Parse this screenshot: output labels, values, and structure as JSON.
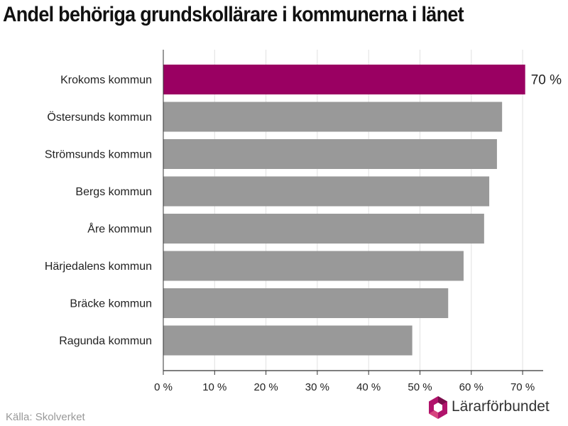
{
  "title": "Andel behöriga grundskollärare i kommunerna i länet",
  "source": "Källa: Skolverket",
  "logo_text": "Lärarförbundet",
  "colors": {
    "highlight": "#9a0062",
    "bar": "#999999",
    "grid": "#e0e0e0",
    "axis": "#333333",
    "logo_magenta": "#b0136b",
    "logo_dark": "#7a0d4b"
  },
  "chart_data": {
    "type": "bar",
    "orientation": "horizontal",
    "categories": [
      "Krokoms kommun",
      "Östersunds kommun",
      "Strömsunds kommun",
      "Bergs kommun",
      "Åre kommun",
      "Härjedalens kommun",
      "Bräcke kommun",
      "Ragunda kommun"
    ],
    "values": [
      70.5,
      66,
      65,
      63.5,
      62.5,
      58.5,
      55.5,
      48.5
    ],
    "highlight_index": 0,
    "data_labels": [
      "70 %",
      "",
      "",
      "",
      "",
      "",
      "",
      ""
    ],
    "xlim": [
      0,
      74
    ],
    "x_ticks": [
      0,
      10,
      20,
      30,
      40,
      50,
      60,
      70
    ],
    "x_tick_labels": [
      "0 %",
      "10 %",
      "20 %",
      "30 %",
      "40 %",
      "50 %",
      "60 %",
      "70 %"
    ],
    "grid": true,
    "title": "Andel behöriga grundskollärare i kommunerna i länet",
    "xlabel": "",
    "ylabel": ""
  }
}
